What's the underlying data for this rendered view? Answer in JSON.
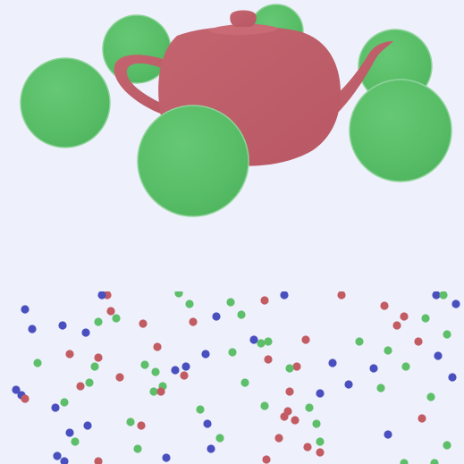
{
  "scene": {
    "background_color": "#eef1fb",
    "teapot_color": "#bf5f6b",
    "sphere_color": "#5cc06a",
    "particle_colors": {
      "red": "#c35b63",
      "green": "#5ebf6a",
      "blue": "#4a4fbf"
    }
  }
}
